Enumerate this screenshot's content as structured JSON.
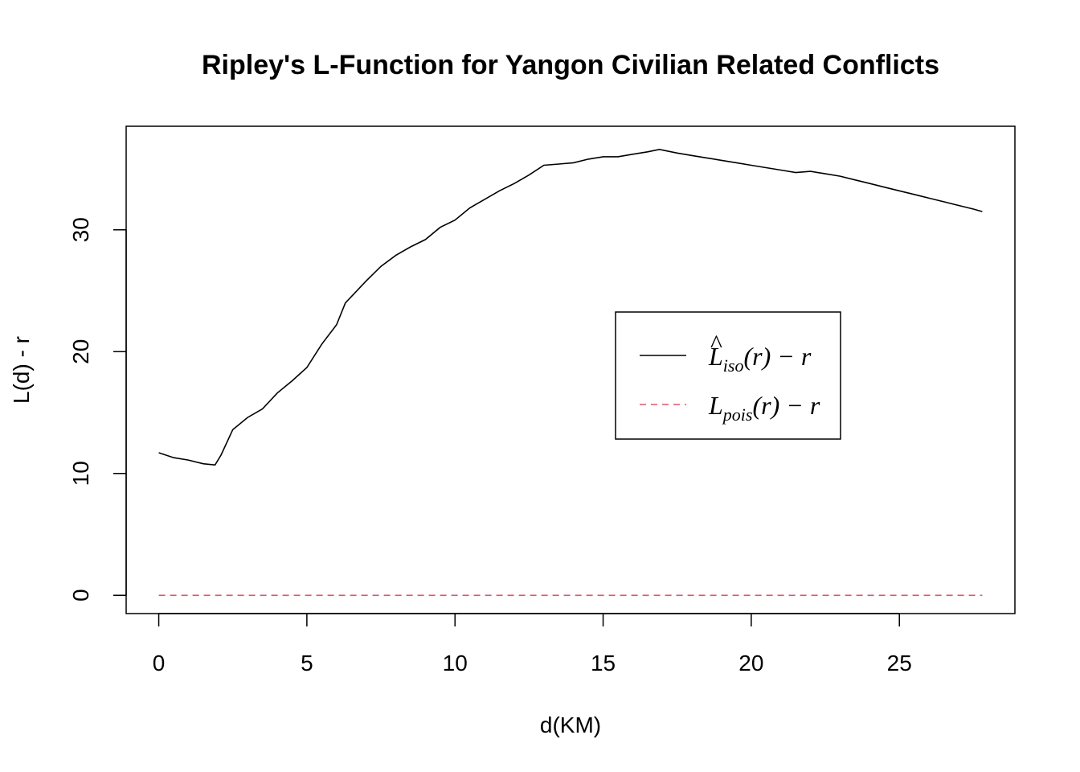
{
  "chart_data": {
    "type": "line",
    "title": "Ripley's L-Function for Yangon Civilian Related Conflicts",
    "xlabel": "d(KM)",
    "ylabel": "L(d) - r",
    "xlim": [
      -1.1,
      28.9
    ],
    "ylim": [
      -1.5,
      38.5
    ],
    "xticks": [
      0,
      5,
      10,
      15,
      20,
      25
    ],
    "yticks": [
      0,
      10,
      20,
      30
    ],
    "grid": false,
    "legend_position": "center-right",
    "series": [
      {
        "name": "L̂iso(r) − r",
        "legend": {
          "main": "L",
          "hat": "^",
          "sub": "iso",
          "rest": "(r) − r"
        },
        "color": "#000000",
        "dash": "solid",
        "x": [
          0,
          0.5,
          1.0,
          1.5,
          1.9,
          2.1,
          2.5,
          3.0,
          3.5,
          4.0,
          4.5,
          5.0,
          5.5,
          6.0,
          6.3,
          7.0,
          7.5,
          8.0,
          8.5,
          9.0,
          9.5,
          10.0,
          10.5,
          11.0,
          11.5,
          12.0,
          12.5,
          13.0,
          13.5,
          14.0,
          14.5,
          15.0,
          15.5,
          16.0,
          16.5,
          16.9,
          17.5,
          18.0,
          18.5,
          19.0,
          19.5,
          20.0,
          20.5,
          21.0,
          21.5,
          22.0,
          22.5,
          23.0,
          23.5,
          24.0,
          24.5,
          25.0,
          25.5,
          26.0,
          26.5,
          27.0,
          27.5,
          27.8
        ],
        "y": [
          11.7,
          11.3,
          11.1,
          10.8,
          10.7,
          11.5,
          13.6,
          14.6,
          15.3,
          16.6,
          17.6,
          18.7,
          20.6,
          22.2,
          24.0,
          25.8,
          27.0,
          27.9,
          28.6,
          29.2,
          30.2,
          30.8,
          31.8,
          32.5,
          33.2,
          33.8,
          34.5,
          35.3,
          35.4,
          35.5,
          35.8,
          36.0,
          36.0,
          36.2,
          36.4,
          36.6,
          36.3,
          36.1,
          35.9,
          35.7,
          35.5,
          35.3,
          35.1,
          34.9,
          34.7,
          34.8,
          34.6,
          34.4,
          34.1,
          33.8,
          33.5,
          33.2,
          32.9,
          32.6,
          32.3,
          32.0,
          31.7,
          31.5
        ]
      },
      {
        "name": "Lpois(r) − r",
        "legend": {
          "main": "L",
          "hat": "",
          "sub": "pois",
          "rest": "(r) − r"
        },
        "color": "#DF536B",
        "dash": "dashed",
        "x": [
          0,
          27.8
        ],
        "y": [
          0,
          0
        ]
      }
    ]
  }
}
